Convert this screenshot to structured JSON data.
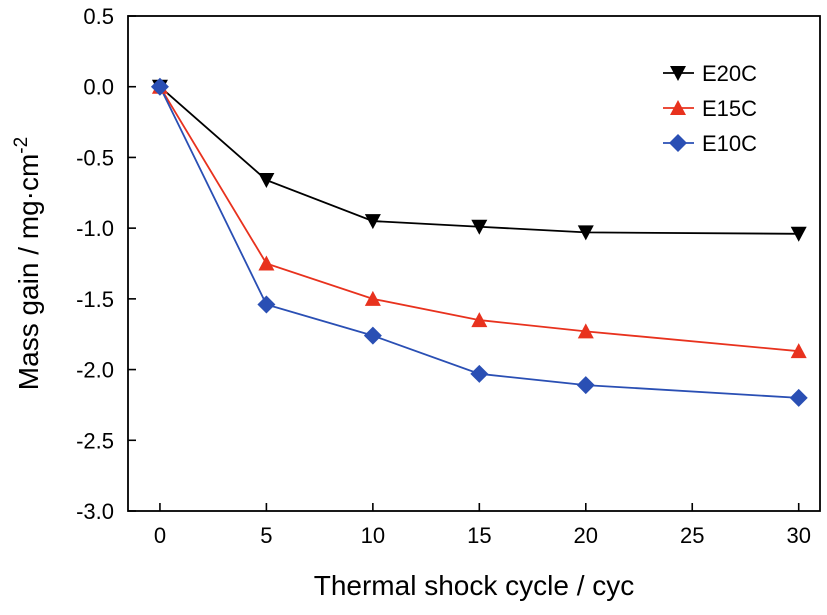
{
  "chart_data": {
    "type": "line",
    "title": "",
    "xlabel": "Thermal shock cycle / cyc",
    "ylabel": "Mass gain / mg·cm",
    "ylabel_sup": "-2",
    "xlim": [
      -1.5,
      31
    ],
    "ylim": [
      -3.0,
      0.5
    ],
    "xticks": [
      0,
      5,
      10,
      15,
      20,
      25,
      30
    ],
    "xtick_labels": [
      "0",
      "5",
      "10",
      "15",
      "20",
      "25",
      "30"
    ],
    "yticks": [
      0.5,
      0.0,
      -0.5,
      -1.0,
      -1.5,
      -2.0,
      -2.5,
      -3.0
    ],
    "ytick_labels": [
      "0.5",
      "0.0",
      "-0.5",
      "-1.0",
      "-1.5",
      "-2.0",
      "-2.5",
      "-3.0"
    ],
    "grid": false,
    "legend_position": "top-right",
    "x": [
      0,
      5,
      10,
      15,
      20,
      30
    ],
    "series": [
      {
        "name": "E20C",
        "color": "#000000",
        "marker": "triangle-down",
        "values": [
          0.0,
          -0.66,
          -0.95,
          -0.99,
          -1.03,
          -1.04
        ]
      },
      {
        "name": "E15C",
        "color": "#e8321e",
        "marker": "triangle-up",
        "values": [
          0.0,
          -1.25,
          -1.5,
          -1.65,
          -1.73,
          -1.87
        ]
      },
      {
        "name": "E10C",
        "color": "#2a4fb4",
        "marker": "diamond",
        "values": [
          0.0,
          -1.54,
          -1.76,
          -2.03,
          -2.11,
          -2.2
        ]
      }
    ]
  }
}
